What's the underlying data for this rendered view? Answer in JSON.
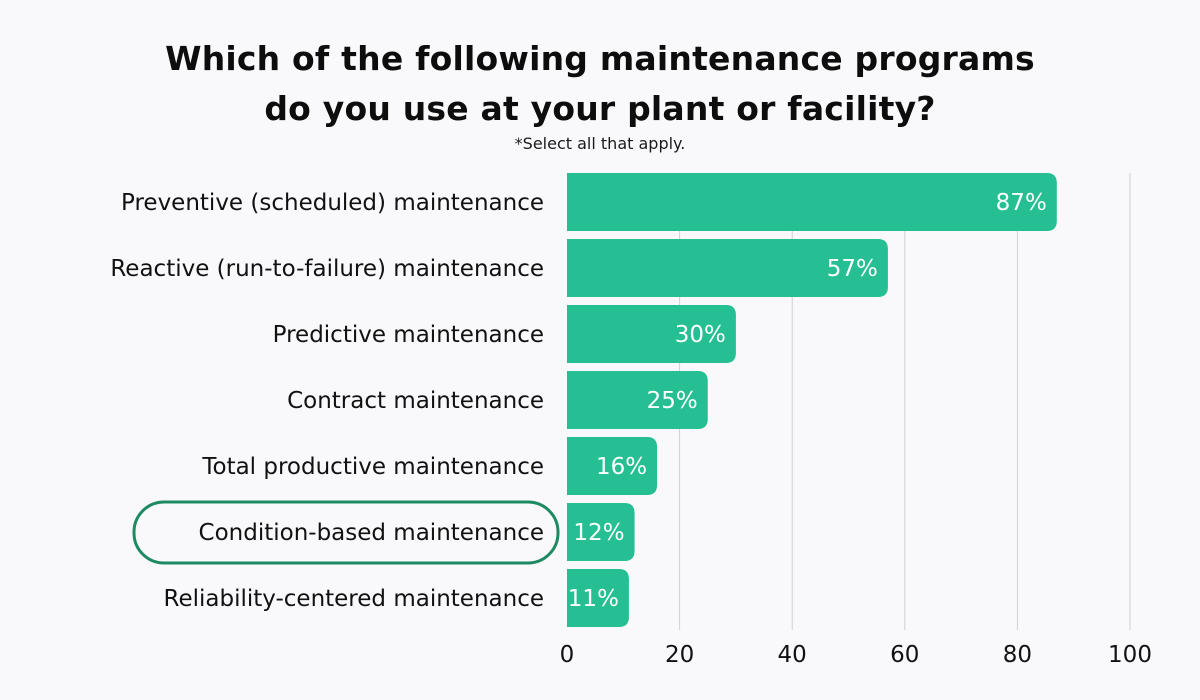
{
  "chart_data": {
    "type": "bar",
    "orientation": "horizontal",
    "title_lines": [
      "Which of the following maintenance programs",
      "do you use at your plant or facility?"
    ],
    "subtitle": "*Select all that apply.",
    "categories": [
      "Preventive (scheduled) maintenance",
      "Reactive (run-to-failure) maintenance",
      "Predictive maintenance",
      "Contract maintenance",
      "Total productive maintenance",
      "Condition-based maintenance",
      "Reliability-centered maintenance"
    ],
    "values": [
      87,
      57,
      30,
      25,
      16,
      12,
      11
    ],
    "value_labels": [
      "87%",
      "57%",
      "30%",
      "25%",
      "16%",
      "12%",
      "11%"
    ],
    "highlighted_category": "Condition-based maintenance",
    "xlim": [
      0,
      100
    ],
    "xticks": [
      0,
      20,
      40,
      60,
      80,
      100
    ],
    "xtick_labels": [
      "0",
      "20",
      "40",
      "60",
      "80",
      "100"
    ],
    "grid": "vertical",
    "colors": {
      "bar": "#26bf94",
      "highlight_outline": "#1e8a63",
      "grid": "#d0d0d0",
      "background": "#f9f9fb"
    }
  }
}
